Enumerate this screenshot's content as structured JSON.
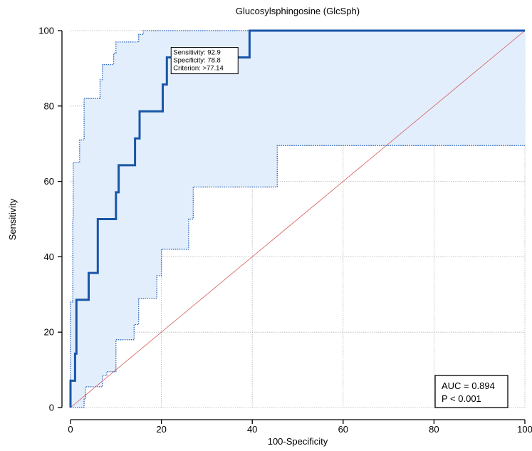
{
  "chart_data": {
    "type": "line",
    "title": "Glucosylsphingosine (GlcSph)",
    "xlabel": "100-Specificity",
    "ylabel": "Sensitivity",
    "xlim": [
      0,
      100
    ],
    "ylim": [
      0,
      100
    ],
    "x_ticks": [
      0,
      20,
      40,
      60,
      80,
      100
    ],
    "y_ticks": [
      0,
      20,
      40,
      60,
      80,
      100
    ],
    "grid": true,
    "series": [
      {
        "role": "roc",
        "color": "#1a56a8",
        "points": [
          [
            0,
            0
          ],
          [
            0,
            7.1
          ],
          [
            1,
            7.1
          ],
          [
            1,
            14.3
          ],
          [
            1.3,
            14.3
          ],
          [
            1.3,
            28.6
          ],
          [
            4,
            28.6
          ],
          [
            4,
            35.7
          ],
          [
            6,
            35.7
          ],
          [
            6,
            50
          ],
          [
            10,
            50
          ],
          [
            10,
            57.1
          ],
          [
            10.6,
            57.1
          ],
          [
            10.6,
            64.3
          ],
          [
            14.2,
            64.3
          ],
          [
            14.2,
            71.4
          ],
          [
            15.2,
            71.4
          ],
          [
            15.2,
            78.6
          ],
          [
            20.3,
            78.6
          ],
          [
            20.3,
            85.7
          ],
          [
            21.2,
            85.7
          ],
          [
            21.2,
            92.9
          ],
          [
            39.4,
            92.9
          ],
          [
            39.4,
            100
          ],
          [
            100,
            100
          ]
        ]
      },
      {
        "role": "ci_upper",
        "color": "#2a63b8",
        "points": [
          [
            0,
            0
          ],
          [
            0,
            28
          ],
          [
            0.5,
            28
          ],
          [
            0.5,
            50
          ],
          [
            0.6,
            50
          ],
          [
            0.6,
            65
          ],
          [
            2,
            65
          ],
          [
            2,
            71
          ],
          [
            3,
            71
          ],
          [
            3,
            82
          ],
          [
            6.5,
            82
          ],
          [
            6.5,
            87
          ],
          [
            7,
            87
          ],
          [
            7,
            91
          ],
          [
            9.5,
            91
          ],
          [
            9.5,
            94
          ],
          [
            10,
            94
          ],
          [
            10,
            97
          ],
          [
            15,
            97
          ],
          [
            15,
            99
          ],
          [
            16,
            99
          ],
          [
            16,
            100
          ],
          [
            100,
            100
          ]
        ]
      },
      {
        "role": "ci_lower",
        "color": "#2a63b8",
        "points": [
          [
            0,
            0
          ],
          [
            3,
            0
          ],
          [
            3,
            2.5
          ],
          [
            3.3,
            2.5
          ],
          [
            3.3,
            5.5
          ],
          [
            7,
            5.5
          ],
          [
            7,
            8.5
          ],
          [
            8,
            8.5
          ],
          [
            8,
            9.5
          ],
          [
            10,
            9.5
          ],
          [
            10,
            18
          ],
          [
            14,
            18
          ],
          [
            14,
            22
          ],
          [
            15,
            22
          ],
          [
            15,
            29
          ],
          [
            19,
            29
          ],
          [
            19,
            35
          ],
          [
            20,
            35
          ],
          [
            20,
            42
          ],
          [
            26,
            42
          ],
          [
            26,
            50
          ],
          [
            27,
            50
          ],
          [
            27,
            58.5
          ],
          [
            45.5,
            58.5
          ],
          [
            45.5,
            69.5
          ],
          [
            100,
            69.5
          ]
        ]
      },
      {
        "role": "reference",
        "color": "#d45a5a",
        "points": [
          [
            0,
            0
          ],
          [
            100,
            100
          ]
        ]
      }
    ],
    "annotation_box": {
      "lines": [
        "Sensitivity: 92.9",
        "Specificity: 78.8",
        "Criterion: >77.14"
      ],
      "anchor": [
        21.2,
        92.9
      ]
    },
    "stats_box": {
      "lines": [
        "AUC = 0.894",
        "P < 0.001"
      ],
      "placement": "bottom-right"
    }
  }
}
